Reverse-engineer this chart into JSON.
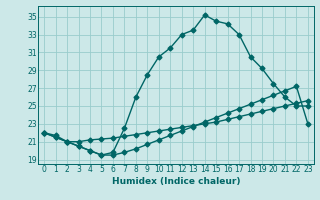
{
  "xlabel": "Humidex (Indice chaleur)",
  "bg_color": "#cce8e8",
  "grid_color": "#99cccc",
  "line_color": "#006666",
  "xlim": [
    -0.5,
    23.5
  ],
  "ylim": [
    18.5,
    36.2
  ],
  "xticks": [
    0,
    1,
    2,
    3,
    4,
    5,
    6,
    7,
    8,
    9,
    10,
    11,
    12,
    13,
    14,
    15,
    16,
    17,
    18,
    19,
    20,
    21,
    22,
    23
  ],
  "yticks": [
    19,
    21,
    23,
    25,
    27,
    29,
    31,
    33,
    35
  ],
  "line1_x": [
    0,
    1,
    2,
    3,
    4,
    5,
    6,
    7,
    8,
    9,
    10,
    11,
    12,
    13,
    14,
    15,
    16,
    17,
    18,
    19,
    20,
    21,
    22,
    23
  ],
  "line1_y": [
    22.0,
    21.7,
    21.0,
    21.0,
    21.2,
    21.3,
    21.4,
    21.6,
    21.8,
    22.0,
    22.2,
    22.4,
    22.6,
    22.8,
    23.0,
    23.2,
    23.5,
    23.8,
    24.1,
    24.4,
    24.7,
    25.0,
    25.3,
    25.6
  ],
  "line2_x": [
    0,
    1,
    2,
    3,
    4,
    5,
    6,
    7,
    8,
    9,
    10,
    11,
    12,
    13,
    14,
    15,
    16,
    17,
    18,
    19,
    20,
    21,
    22,
    23
  ],
  "line2_y": [
    22.0,
    21.5,
    21.0,
    20.5,
    20.0,
    19.5,
    19.5,
    19.8,
    20.2,
    20.7,
    21.2,
    21.7,
    22.2,
    22.7,
    23.2,
    23.7,
    24.2,
    24.7,
    25.2,
    25.7,
    26.2,
    26.7,
    27.2,
    23.0
  ],
  "line3_x": [
    0,
    1,
    2,
    3,
    4,
    5,
    6,
    7,
    8,
    9,
    10,
    11,
    12,
    13,
    14,
    15,
    16,
    17,
    18,
    19,
    20,
    21,
    22,
    23
  ],
  "line3_y": [
    22.0,
    21.5,
    21.0,
    20.5,
    20.0,
    19.5,
    19.8,
    22.5,
    26.0,
    28.5,
    30.5,
    31.5,
    33.0,
    33.5,
    35.2,
    34.5,
    34.2,
    33.0,
    30.5,
    29.2,
    27.5,
    26.0,
    25.0,
    25.0
  ],
  "marker": "D",
  "marker_size": 2.5,
  "line_width": 1.0,
  "tick_fontsize": 5.5,
  "xlabel_fontsize": 6.5
}
